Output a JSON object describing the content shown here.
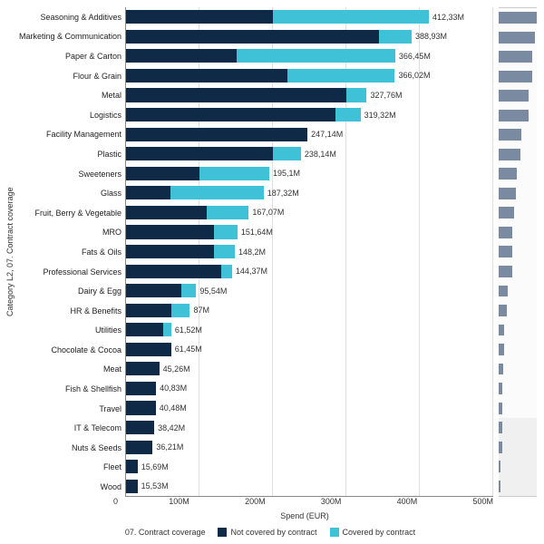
{
  "chart": {
    "type": "stacked-bar-horizontal",
    "y_axis_title": "Category L2, 07. Contract coverage",
    "x_axis_title": "Spend (EUR)",
    "x_max": 500,
    "x_tick_step": 100,
    "x_ticks": [
      "0",
      "100M",
      "200M",
      "300M",
      "400M",
      "500M"
    ],
    "colors": {
      "not_covered": "#0e2a47",
      "covered": "#3fc1d8",
      "grid": "#e0e0e0",
      "spark_bar": "#7a8aa0",
      "background": "#ffffff"
    },
    "font_size_labels": 9,
    "legend": {
      "title": "07. Contract coverage",
      "items": [
        {
          "label": "Not covered by contract",
          "color": "#0e2a47"
        },
        {
          "label": "Covered by contract",
          "color": "#3fc1d8"
        }
      ]
    },
    "categories": [
      {
        "name": "Seasoning & Additives",
        "not_covered": 200,
        "covered": 212.33,
        "total_label": "412,33M"
      },
      {
        "name": "Marketing & Communication",
        "not_covered": 345,
        "covered": 43.93,
        "total_label": "388,93M"
      },
      {
        "name": "Paper & Carton",
        "not_covered": 150,
        "covered": 216.45,
        "total_label": "366,45M"
      },
      {
        "name": "Flour & Grain",
        "not_covered": 220,
        "covered": 146.02,
        "total_label": "366,02M"
      },
      {
        "name": "Metal",
        "not_covered": 300,
        "covered": 27.76,
        "total_label": "327,76M"
      },
      {
        "name": "Logistics",
        "not_covered": 285,
        "covered": 34.32,
        "total_label": "319,32M"
      },
      {
        "name": "Facility Management",
        "not_covered": 247.14,
        "covered": 0,
        "total_label": "247,14M"
      },
      {
        "name": "Plastic",
        "not_covered": 200,
        "covered": 38.14,
        "total_label": "238,14M"
      },
      {
        "name": "Sweeteners",
        "not_covered": 100,
        "covered": 95.1,
        "total_label": "195,1M"
      },
      {
        "name": "Glass",
        "not_covered": 60,
        "covered": 127.32,
        "total_label": "187,32M"
      },
      {
        "name": "Fruit, Berry & Vegetable",
        "not_covered": 110,
        "covered": 57.07,
        "total_label": "167,07M"
      },
      {
        "name": "MRO",
        "not_covered": 120,
        "covered": 31.64,
        "total_label": "151,64M"
      },
      {
        "name": "Fats & Oils",
        "not_covered": 120,
        "covered": 28.2,
        "total_label": "148,2M"
      },
      {
        "name": "Professional Services",
        "not_covered": 130,
        "covered": 14.37,
        "total_label": "144,37M"
      },
      {
        "name": "Dairy & Egg",
        "not_covered": 75,
        "covered": 20.54,
        "total_label": "95,54M"
      },
      {
        "name": "HR & Benefits",
        "not_covered": 62,
        "covered": 25,
        "total_label": "87M"
      },
      {
        "name": "Utilities",
        "not_covered": 50,
        "covered": 11.52,
        "total_label": "61,52M"
      },
      {
        "name": "Chocolate & Cocoa",
        "not_covered": 61.45,
        "covered": 0,
        "total_label": "61,45M"
      },
      {
        "name": "Meat",
        "not_covered": 45.26,
        "covered": 0,
        "total_label": "45,26M"
      },
      {
        "name": "Fish & Shellfish",
        "not_covered": 40.83,
        "covered": 0,
        "total_label": "40,83M"
      },
      {
        "name": "Travel",
        "not_covered": 40.48,
        "covered": 0,
        "total_label": "40,48M"
      },
      {
        "name": "IT & Telecom",
        "not_covered": 38.42,
        "covered": 0,
        "total_label": "38,42M"
      },
      {
        "name": "Nuts & Seeds",
        "not_covered": 36.21,
        "covered": 0,
        "total_label": "36,21M"
      },
      {
        "name": "Fleet",
        "not_covered": 15.69,
        "covered": 0,
        "total_label": "15,69M"
      },
      {
        "name": "Wood",
        "not_covered": 15.53,
        "covered": 0,
        "total_label": "15,53M"
      }
    ]
  }
}
